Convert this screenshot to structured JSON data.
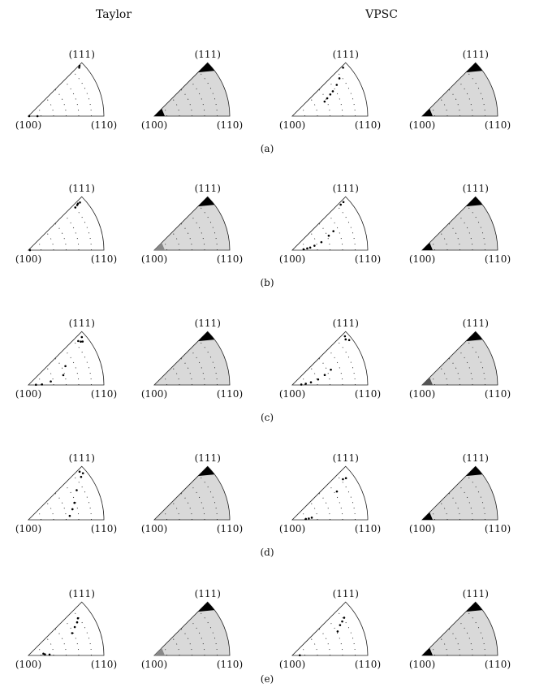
{
  "headers": {
    "left": "Taylor",
    "right": "VPSC"
  },
  "pole_labels": {
    "top": "(111)",
    "left": "(100)",
    "right": "(110)"
  },
  "rows": [
    {
      "caption": "(a)",
      "panels": [
        {
          "model": "Taylor",
          "kind": "scatter",
          "points": [
            [
              0.12,
              0.0
            ],
            [
              0.01,
              0.02
            ],
            [
              0.93,
              0.97
            ],
            [
              0.95,
              0.99
            ]
          ]
        },
        {
          "model": "Taylor",
          "kind": "contour",
          "peaks": [
            {
              "at": "111",
              "level": "high"
            },
            {
              "at": "100",
              "level": "high"
            }
          ]
        },
        {
          "model": "VPSC",
          "kind": "scatter",
          "points": [
            [
              0.47,
              0.54
            ],
            [
              0.52,
              0.6
            ],
            [
              0.58,
              0.66
            ],
            [
              0.63,
              0.7
            ],
            [
              0.72,
              0.78
            ],
            [
              0.8,
              0.86
            ],
            [
              0.93,
              0.97
            ]
          ]
        },
        {
          "model": "VPSC",
          "kind": "contour",
          "peaks": [
            {
              "at": "111",
              "level": "high"
            },
            {
              "at": "100",
              "level": "high"
            }
          ]
        }
      ]
    },
    {
      "caption": "(b)",
      "panels": [
        {
          "model": "Taylor",
          "kind": "scatter",
          "points": [
            [
              0.84,
              0.94
            ],
            [
              0.88,
              0.95
            ],
            [
              0.9,
              0.96
            ],
            [
              0.93,
              0.95
            ],
            [
              0.02,
              0.01
            ]
          ]
        },
        {
          "model": "Taylor",
          "kind": "contour",
          "peaks": [
            {
              "at": "111",
              "level": "high"
            },
            {
              "at": "100",
              "level": "low"
            }
          ]
        },
        {
          "model": "VPSC",
          "kind": "scatter",
          "points": [
            [
              0.15,
              0.1
            ],
            [
              0.2,
              0.15
            ],
            [
              0.24,
              0.18
            ],
            [
              0.3,
              0.25
            ],
            [
              0.4,
              0.34
            ],
            [
              0.52,
              0.48
            ],
            [
              0.6,
              0.55
            ],
            [
              0.88,
              0.96
            ],
            [
              0.93,
              0.96
            ]
          ]
        },
        {
          "model": "VPSC",
          "kind": "contour",
          "peaks": [
            {
              "at": "111",
              "level": "high"
            },
            {
              "at": "100",
              "level": "high"
            }
          ]
        }
      ]
    },
    {
      "caption": "(c)",
      "panels": [
        {
          "model": "Taylor",
          "kind": "scatter",
          "points": [
            [
              0.88,
              0.92
            ],
            [
              0.9,
              0.88
            ],
            [
              0.92,
              0.86
            ],
            [
              0.95,
              0.93
            ],
            [
              0.55,
              0.6
            ],
            [
              0.48,
              0.35
            ],
            [
              0.3,
              0.2
            ],
            [
              0.18,
              0.05
            ],
            [
              0.1,
              0.04
            ]
          ]
        },
        {
          "model": "Taylor",
          "kind": "contour",
          "peaks": [
            {
              "at": "111",
              "level": "high"
            }
          ]
        },
        {
          "model": "VPSC",
          "kind": "scatter",
          "points": [
            [
              0.95,
              0.95
            ],
            [
              0.93,
              0.9
            ],
            [
              0.96,
              0.85
            ],
            [
              0.55,
              0.48
            ],
            [
              0.45,
              0.38
            ],
            [
              0.35,
              0.27
            ],
            [
              0.25,
              0.18
            ],
            [
              0.18,
              0.12
            ],
            [
              0.12,
              0.06
            ]
          ]
        },
        {
          "model": "VPSC",
          "kind": "contour",
          "peaks": [
            {
              "at": "111",
              "level": "high"
            },
            {
              "at": "100",
              "level": "medium"
            }
          ]
        }
      ]
    },
    {
      "caption": "(d)",
      "panels": [
        {
          "model": "Taylor",
          "kind": "scatter",
          "points": [
            [
              0.93,
              0.96
            ],
            [
              0.95,
              0.9
            ],
            [
              0.9,
              0.87
            ],
            [
              0.75,
              0.7
            ],
            [
              0.65,
              0.45
            ],
            [
              0.6,
              0.3
            ],
            [
              0.55,
              0.12
            ]
          ]
        },
        {
          "model": "Taylor",
          "kind": "contour",
          "peaks": [
            {
              "at": "111",
              "level": "high"
            }
          ]
        },
        {
          "model": "VPSC",
          "kind": "scatter",
          "points": [
            [
              0.86,
              0.86
            ],
            [
              0.9,
              0.84
            ],
            [
              0.7,
              0.72
            ],
            [
              0.26,
              0.14
            ],
            [
              0.22,
              0.1
            ],
            [
              0.18,
              0.08
            ]
          ]
        },
        {
          "model": "VPSC",
          "kind": "contour",
          "peaks": [
            {
              "at": "111",
              "level": "high"
            },
            {
              "at": "100",
              "level": "high"
            }
          ]
        }
      ]
    },
    {
      "caption": "(e)",
      "panels": [
        {
          "model": "Taylor",
          "kind": "scatter",
          "points": [
            [
              0.82,
              0.82
            ],
            [
              0.78,
              0.76
            ],
            [
              0.72,
              0.7
            ],
            [
              0.65,
              0.6
            ],
            [
              0.2,
              0.15
            ],
            [
              0.22,
              0.08
            ],
            [
              0.28,
              0.05
            ]
          ]
        },
        {
          "model": "Taylor",
          "kind": "contour",
          "peaks": [
            {
              "at": "111",
              "level": "high"
            },
            {
              "at": "100",
              "level": "low"
            }
          ]
        },
        {
          "model": "VPSC",
          "kind": "scatter",
          "points": [
            [
              0.85,
              0.8
            ],
            [
              0.8,
              0.76
            ],
            [
              0.75,
              0.72
            ],
            [
              0.68,
              0.62
            ],
            [
              0.1,
              0.03
            ]
          ]
        },
        {
          "model": "VPSC",
          "kind": "contour",
          "peaks": [
            {
              "at": "111",
              "level": "high"
            },
            {
              "at": "100",
              "level": "high"
            }
          ]
        }
      ]
    }
  ]
}
